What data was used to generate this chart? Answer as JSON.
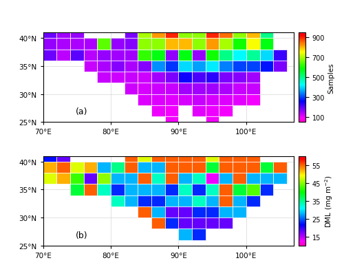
{
  "lon_min": 70,
  "lon_max": 105,
  "lat_min": 25,
  "lat_max": 41,
  "cell_size": 2,
  "panel_a_label": "Samples",
  "panel_a_vmin": 50,
  "panel_a_vmax": 950,
  "panel_a_ticks": [
    100,
    300,
    500,
    700,
    900
  ],
  "panel_b_label": "DML (mg m$^{-2}$)",
  "panel_b_vmin": 10,
  "panel_b_vmax": 60,
  "panel_b_ticks": [
    15,
    25,
    35,
    45,
    55
  ],
  "xlabel_ticks": [
    70,
    80,
    90,
    100
  ],
  "ylabel_ticks": [
    25,
    30,
    35,
    40
  ],
  "annotation_a": "(a)",
  "annotation_b": "(b)",
  "panel_a_data": [
    [
      70,
      40,
      190
    ],
    [
      72,
      40,
      155
    ],
    [
      74,
      40,
      160
    ],
    [
      70,
      38,
      160
    ],
    [
      72,
      38,
      145
    ],
    [
      74,
      38,
      145
    ],
    [
      76,
      38,
      145
    ],
    [
      70,
      36,
      190
    ],
    [
      72,
      36,
      135
    ],
    [
      74,
      36,
      200
    ],
    [
      76,
      36,
      140
    ],
    [
      78,
      36,
      160
    ],
    [
      80,
      36,
      160
    ],
    [
      76,
      34,
      130
    ],
    [
      78,
      34,
      145
    ],
    [
      80,
      34,
      170
    ],
    [
      82,
      34,
      145
    ],
    [
      78,
      32,
      130
    ],
    [
      80,
      32,
      125
    ],
    [
      82,
      32,
      130
    ],
    [
      84,
      32,
      125
    ],
    [
      82,
      30,
      125
    ],
    [
      84,
      30,
      120
    ],
    [
      86,
      30,
      125
    ],
    [
      84,
      28,
      115
    ],
    [
      86,
      28,
      115
    ],
    [
      88,
      28,
      110
    ],
    [
      86,
      26,
      105
    ],
    [
      88,
      26,
      100
    ],
    [
      88,
      24,
      100
    ],
    [
      78,
      38,
      650
    ],
    [
      82,
      40,
      180
    ],
    [
      84,
      40,
      700
    ],
    [
      86,
      40,
      820
    ],
    [
      88,
      40,
      900
    ],
    [
      90,
      40,
      680
    ],
    [
      92,
      40,
      680
    ],
    [
      94,
      40,
      900
    ],
    [
      96,
      40,
      850
    ],
    [
      98,
      40,
      680
    ],
    [
      100,
      40,
      800
    ],
    [
      102,
      40,
      500
    ],
    [
      80,
      38,
      160
    ],
    [
      82,
      38,
      170
    ],
    [
      84,
      38,
      680
    ],
    [
      86,
      38,
      680
    ],
    [
      88,
      38,
      800
    ],
    [
      90,
      38,
      800
    ],
    [
      92,
      38,
      680
    ],
    [
      94,
      38,
      820
    ],
    [
      96,
      38,
      700
    ],
    [
      98,
      38,
      600
    ],
    [
      100,
      38,
      750
    ],
    [
      102,
      38,
      580
    ],
    [
      80,
      36,
      155
    ],
    [
      82,
      36,
      155
    ],
    [
      84,
      36,
      620
    ],
    [
      86,
      36,
      580
    ],
    [
      88,
      36,
      165
    ],
    [
      90,
      36,
      580
    ],
    [
      92,
      36,
      160
    ],
    [
      94,
      36,
      600
    ],
    [
      96,
      36,
      500
    ],
    [
      98,
      36,
      420
    ],
    [
      100,
      36,
      490
    ],
    [
      102,
      36,
      400
    ],
    [
      104,
      36,
      220
    ],
    [
      84,
      34,
      170
    ],
    [
      86,
      34,
      350
    ],
    [
      88,
      34,
      290
    ],
    [
      90,
      34,
      400
    ],
    [
      92,
      34,
      360
    ],
    [
      94,
      34,
      410
    ],
    [
      96,
      34,
      340
    ],
    [
      98,
      34,
      300
    ],
    [
      100,
      34,
      300
    ],
    [
      102,
      34,
      270
    ],
    [
      104,
      34,
      180
    ],
    [
      86,
      32,
      155
    ],
    [
      88,
      32,
      180
    ],
    [
      90,
      32,
      250
    ],
    [
      92,
      32,
      210
    ],
    [
      94,
      32,
      230
    ],
    [
      96,
      32,
      180
    ],
    [
      98,
      32,
      170
    ],
    [
      100,
      32,
      155
    ],
    [
      88,
      30,
      130
    ],
    [
      90,
      30,
      155
    ],
    [
      92,
      30,
      155
    ],
    [
      94,
      30,
      155
    ],
    [
      96,
      30,
      145
    ],
    [
      98,
      30,
      130
    ],
    [
      100,
      30,
      130
    ],
    [
      90,
      28,
      120
    ],
    [
      92,
      28,
      130
    ],
    [
      94,
      28,
      120
    ],
    [
      96,
      28,
      115
    ],
    [
      98,
      28,
      110
    ],
    [
      100,
      28,
      100
    ],
    [
      92,
      26,
      110
    ],
    [
      94,
      26,
      105
    ],
    [
      96,
      26,
      100
    ],
    [
      94,
      24,
      100
    ]
  ],
  "panel_b_data": [
    [
      70,
      40,
      22
    ],
    [
      72,
      40,
      18
    ],
    [
      70,
      38,
      52
    ],
    [
      72,
      38,
      55
    ],
    [
      70,
      36,
      48
    ],
    [
      72,
      36,
      52
    ],
    [
      74,
      36,
      42
    ],
    [
      74,
      38,
      48
    ],
    [
      74,
      34,
      38
    ],
    [
      76,
      38,
      52
    ],
    [
      76,
      36,
      18
    ],
    [
      76,
      34,
      55
    ],
    [
      78,
      38,
      28
    ],
    [
      78,
      36,
      45
    ],
    [
      78,
      34,
      33
    ],
    [
      80,
      38,
      35
    ],
    [
      80,
      36,
      28
    ],
    [
      80,
      34,
      23
    ],
    [
      80,
      32,
      33
    ],
    [
      82,
      40,
      55
    ],
    [
      82,
      38,
      55
    ],
    [
      82,
      36,
      28
    ],
    [
      82,
      34,
      28
    ],
    [
      82,
      32,
      28
    ],
    [
      84,
      40,
      48
    ],
    [
      84,
      38,
      28
    ],
    [
      84,
      36,
      55
    ],
    [
      84,
      34,
      28
    ],
    [
      84,
      32,
      23
    ],
    [
      84,
      30,
      55
    ],
    [
      86,
      40,
      55
    ],
    [
      86,
      38,
      28
    ],
    [
      86,
      36,
      33
    ],
    [
      86,
      34,
      28
    ],
    [
      86,
      32,
      23
    ],
    [
      86,
      30,
      28
    ],
    [
      86,
      28,
      55
    ],
    [
      88,
      40,
      55
    ],
    [
      88,
      38,
      55
    ],
    [
      88,
      36,
      55
    ],
    [
      88,
      34,
      23
    ],
    [
      88,
      32,
      28
    ],
    [
      88,
      30,
      18
    ],
    [
      88,
      28,
      23
    ],
    [
      90,
      40,
      55
    ],
    [
      90,
      38,
      55
    ],
    [
      90,
      36,
      28
    ],
    [
      90,
      34,
      33
    ],
    [
      90,
      32,
      28
    ],
    [
      90,
      30,
      18
    ],
    [
      90,
      28,
      18
    ],
    [
      90,
      26,
      28
    ],
    [
      92,
      40,
      55
    ],
    [
      92,
      38,
      55
    ],
    [
      92,
      36,
      33
    ],
    [
      92,
      34,
      23
    ],
    [
      92,
      32,
      33
    ],
    [
      92,
      30,
      23
    ],
    [
      92,
      28,
      18
    ],
    [
      92,
      26,
      23
    ],
    [
      94,
      40,
      48
    ],
    [
      94,
      38,
      38
    ],
    [
      94,
      36,
      13
    ],
    [
      94,
      34,
      33
    ],
    [
      94,
      32,
      28
    ],
    [
      94,
      30,
      23
    ],
    [
      94,
      28,
      18
    ],
    [
      96,
      40,
      55
    ],
    [
      96,
      38,
      55
    ],
    [
      96,
      36,
      28
    ],
    [
      96,
      34,
      55
    ],
    [
      96,
      32,
      55
    ],
    [
      96,
      30,
      28
    ],
    [
      96,
      28,
      18
    ],
    [
      98,
      40,
      55
    ],
    [
      98,
      38,
      55
    ],
    [
      98,
      36,
      55
    ],
    [
      98,
      34,
      38
    ],
    [
      98,
      32,
      28
    ],
    [
      98,
      30,
      28
    ],
    [
      100,
      40,
      55
    ],
    [
      100,
      38,
      55
    ],
    [
      100,
      36,
      28
    ],
    [
      100,
      34,
      43
    ],
    [
      100,
      32,
      23
    ],
    [
      102,
      38,
      38
    ],
    [
      102,
      36,
      28
    ],
    [
      102,
      34,
      23
    ],
    [
      104,
      38,
      55
    ],
    [
      104,
      36,
      28
    ]
  ]
}
